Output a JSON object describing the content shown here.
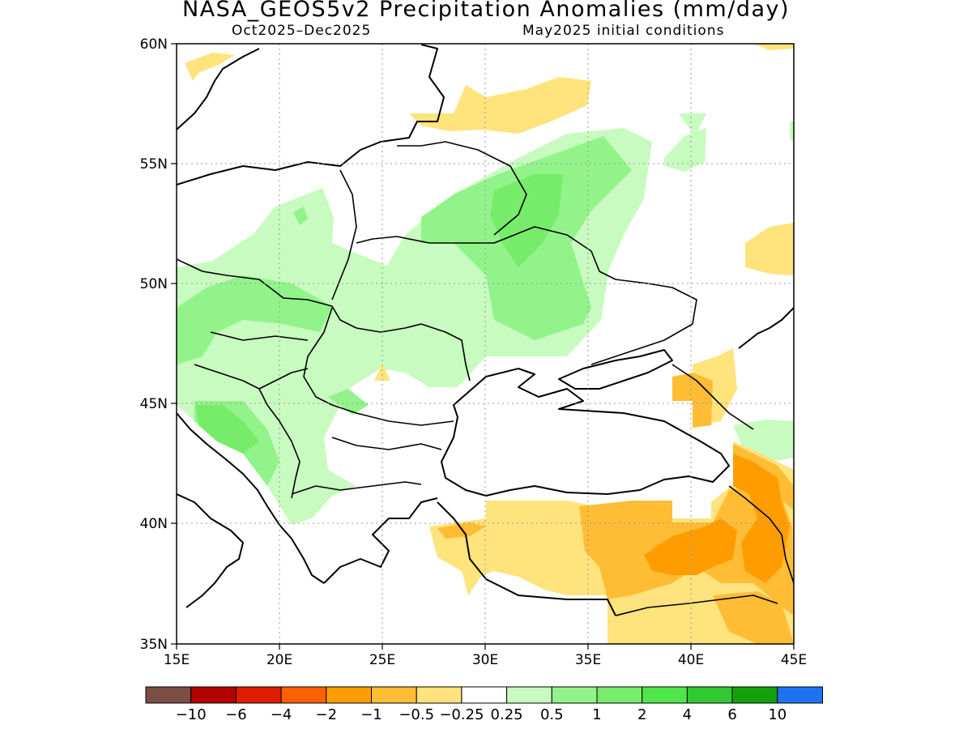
{
  "title": "NASA_GEOS5v2 Precipitation Anomalies (mm/day)",
  "subtitle_left": "Oct2025–Dec2025",
  "subtitle_right": "May2025 initial conditions",
  "map": {
    "lon_range": [
      15,
      45
    ],
    "lat_range": [
      35,
      60
    ],
    "lon_ticks": [
      "15E",
      "20E",
      "25E",
      "30E",
      "35E",
      "40E",
      "45E"
    ],
    "lat_ticks": [
      "35N",
      "40N",
      "45N",
      "50N",
      "55N",
      "60N"
    ],
    "grid": "dotted"
  },
  "colorbar": {
    "colors": [
      "#7b4d43",
      "#b30000",
      "#df1d00",
      "#ff6000",
      "#ff9d00",
      "#ffbd35",
      "#ffe37d",
      "#ffffff",
      "#c8fbbf",
      "#92f38a",
      "#77ec6a",
      "#4fe64a",
      "#32c831",
      "#11a10d",
      "#1f72f2"
    ],
    "labels": [
      "−10",
      "−6",
      "−4",
      "−2",
      "−1",
      "−0.5",
      "−0.25",
      "0.25",
      "0.5",
      "1",
      "2",
      "4",
      "6",
      "10"
    ]
  }
}
